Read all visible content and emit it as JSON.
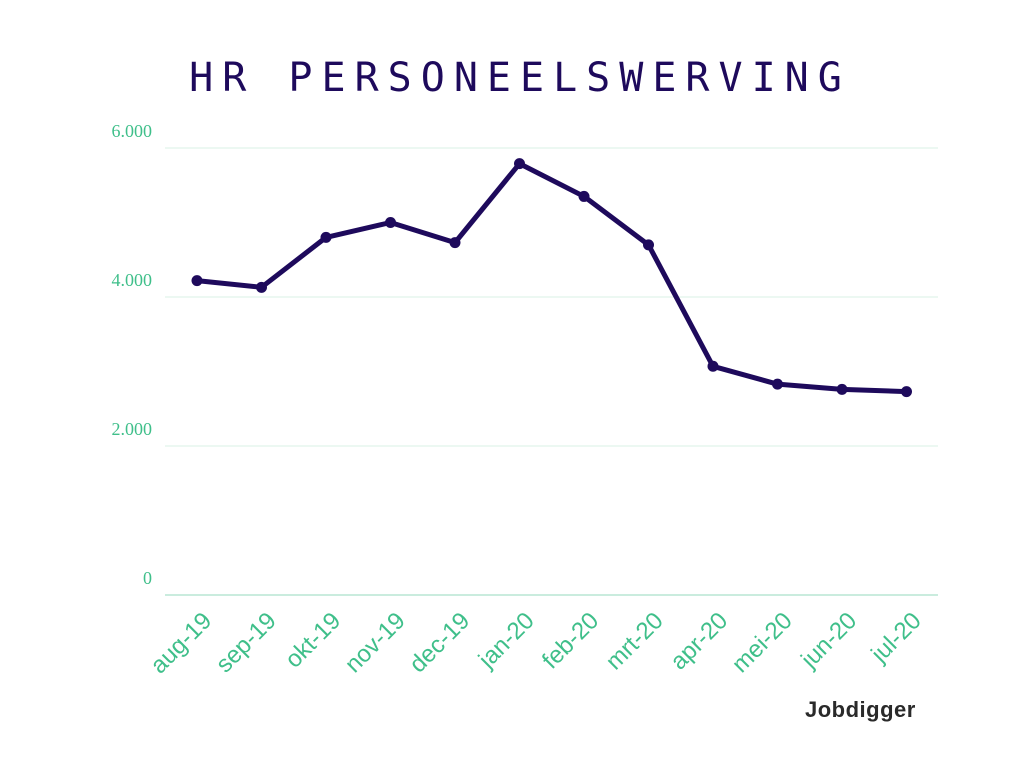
{
  "chart_data": {
    "type": "line",
    "title": "HR PERSONEELSWERVING",
    "categories": [
      "aug-19",
      "sep-19",
      "okt-19",
      "nov-19",
      "dec-19",
      "jan-20",
      "feb-20",
      "mrt-20",
      "apr-20",
      "mei-20",
      "jun-20",
      "jul-20"
    ],
    "values": [
      4220,
      4130,
      4800,
      5000,
      4730,
      5790,
      5350,
      4700,
      3070,
      2830,
      2760,
      2730
    ],
    "ylim": [
      0,
      6000
    ],
    "yticks": [
      0,
      2000,
      4000,
      6000
    ],
    "ytick_labels": [
      "0",
      "2.000",
      "4.000",
      "6.000"
    ],
    "xlabel": "",
    "ylabel": "",
    "grid": true,
    "line_color": "#1e0a5c",
    "axis_color": "#3fbf8a"
  },
  "brand": {
    "logo_text": "Jobdigger"
  }
}
